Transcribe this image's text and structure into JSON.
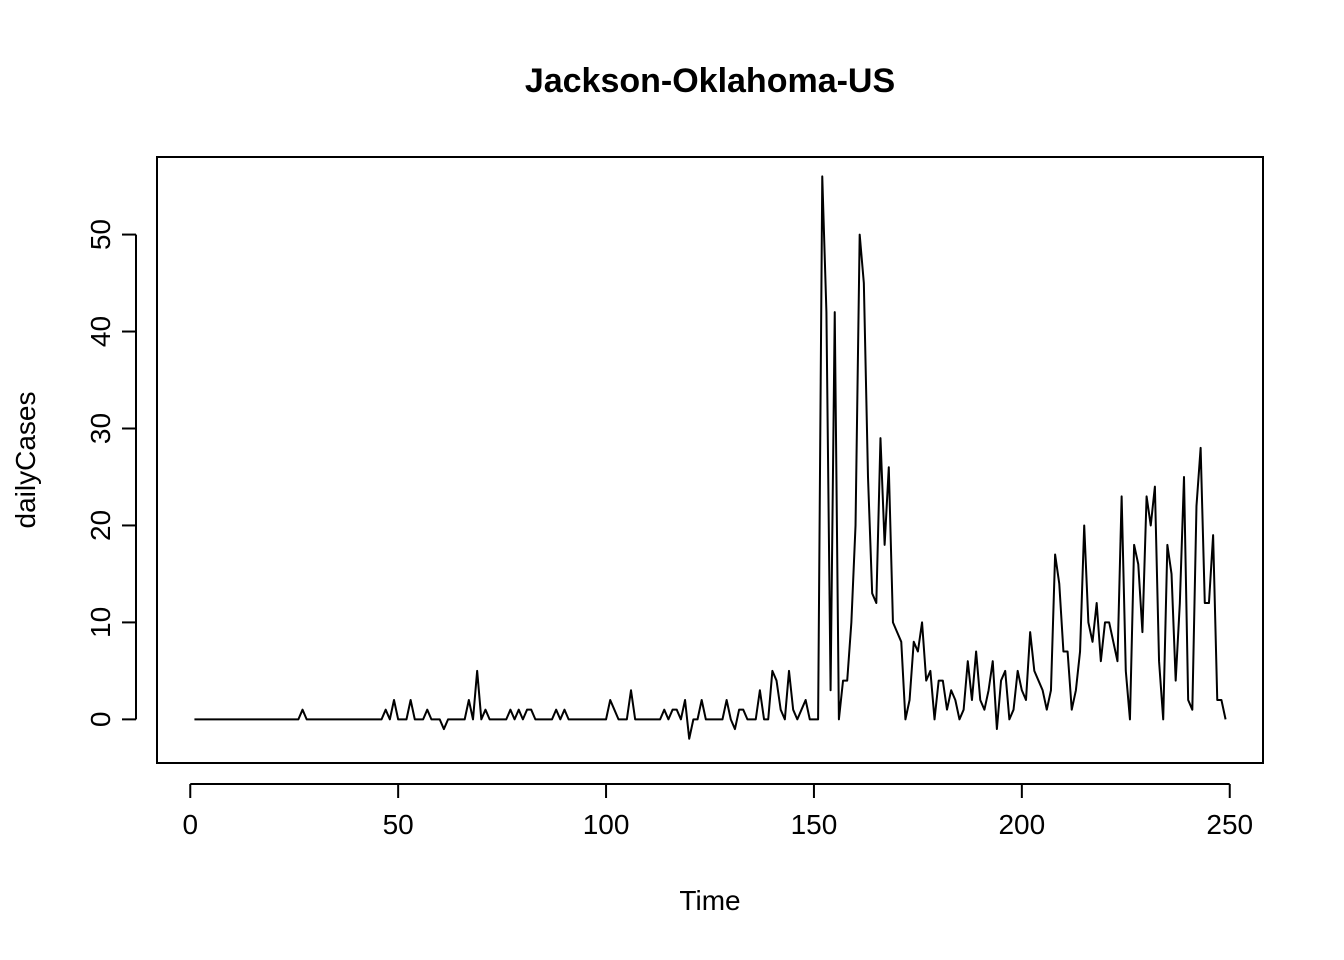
{
  "chart_data": {
    "type": "line",
    "title": "Jackson-Oklahoma-US",
    "xlabel": "Time",
    "ylabel": "dailyCases",
    "xlim": [
      -8,
      258
    ],
    "ylim": [
      -4.5,
      58
    ],
    "xticks": [
      0,
      50,
      100,
      150,
      200,
      250
    ],
    "yticks": [
      0,
      10,
      20,
      30,
      40,
      50
    ],
    "xtick_labels": [
      "0",
      "50",
      "100",
      "150",
      "200",
      "250"
    ],
    "ytick_labels": [
      "0",
      "10",
      "20",
      "30",
      "40",
      "50"
    ],
    "grid": false,
    "color": "#000000",
    "series": [
      {
        "x_start": 1,
        "values": [
          0,
          0,
          0,
          0,
          0,
          0,
          0,
          0,
          0,
          0,
          0,
          0,
          0,
          0,
          0,
          0,
          0,
          0,
          0,
          0,
          0,
          0,
          0,
          0,
          0,
          0,
          1,
          0,
          0,
          0,
          0,
          0,
          0,
          0,
          0,
          0,
          0,
          0,
          0,
          0,
          0,
          0,
          0,
          0,
          0,
          0,
          1,
          0,
          2,
          0,
          0,
          0,
          2,
          0,
          0,
          0,
          1,
          0,
          0,
          0,
          -1,
          0,
          0,
          0,
          0,
          0,
          2,
          0,
          5,
          0,
          1,
          0,
          0,
          0,
          0,
          0,
          1,
          0,
          1,
          0,
          1,
          1,
          0,
          0,
          0,
          0,
          0,
          1,
          0,
          1,
          0,
          0,
          0,
          0,
          0,
          0,
          0,
          0,
          0,
          0,
          2,
          1,
          0,
          0,
          0,
          3,
          0,
          0,
          0,
          0,
          0,
          0,
          0,
          1,
          0,
          1,
          1,
          0,
          2,
          -2,
          0,
          0,
          2,
          0,
          0,
          0,
          0,
          0,
          2,
          0,
          -1,
          1,
          1,
          0,
          0,
          0,
          3,
          0,
          0,
          5,
          4,
          1,
          0,
          5,
          1,
          0,
          1,
          2,
          0,
          0,
          0,
          56,
          42,
          3,
          42,
          0,
          4,
          4,
          10,
          20,
          50,
          45,
          25,
          13,
          12,
          29,
          18,
          26,
          10,
          9,
          8,
          0,
          2,
          8,
          7,
          10,
          4,
          5,
          0,
          4,
          4,
          1,
          3,
          2,
          0,
          1,
          6,
          2,
          7,
          2,
          1,
          3,
          6,
          -1,
          4,
          5,
          0,
          1,
          5,
          3,
          2,
          9,
          5,
          4,
          3,
          1,
          3,
          17,
          14,
          7,
          7,
          1,
          3,
          7,
          20,
          10,
          8,
          12,
          6,
          10,
          10,
          8,
          6,
          23,
          5,
          0,
          18,
          16,
          9,
          23,
          20,
          24,
          6,
          0,
          18,
          15,
          4,
          12,
          25,
          2,
          1,
          22,
          28,
          12,
          12,
          19,
          2,
          2,
          0
        ]
      }
    ]
  }
}
